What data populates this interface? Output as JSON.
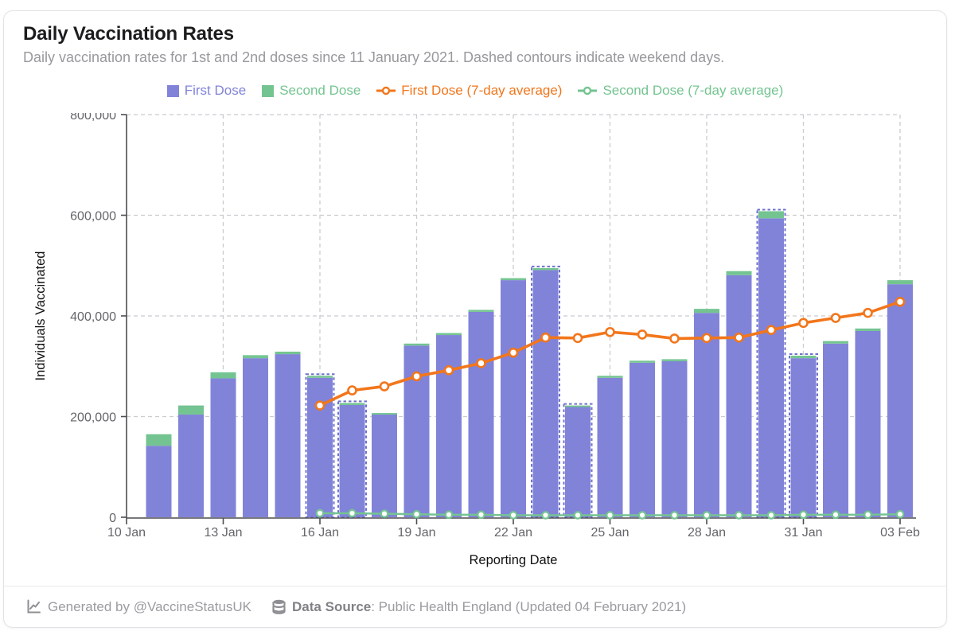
{
  "card": {
    "title": "Daily Vaccination Rates",
    "subtitle": "Daily vaccination rates for 1st and 2nd doses since 11 January 2021. Dashed contours indicate weekend days."
  },
  "colors": {
    "first_dose": "#8183d8",
    "second_dose": "#74c491",
    "first_dose_avg": "#f2761b",
    "second_dose_avg": "#74c491",
    "weekend_outline": "#6e71cf",
    "grid": "#cbcbd0",
    "axis": "#4d4d52"
  },
  "chart_data": {
    "type": "bar",
    "stacked": true,
    "title": "Daily Vaccination Rates",
    "xlabel": "Reporting Date",
    "ylabel": "Individuals Vaccinated",
    "ylim": [
      0,
      800000
    ],
    "ytick_step": 200000,
    "grid": "dashed",
    "legend_position": "top-center",
    "categories": [
      "11 Jan",
      "12 Jan",
      "13 Jan",
      "14 Jan",
      "15 Jan",
      "16 Jan",
      "17 Jan",
      "18 Jan",
      "19 Jan",
      "20 Jan",
      "21 Jan",
      "22 Jan",
      "23 Jan",
      "24 Jan",
      "25 Jan",
      "26 Jan",
      "27 Jan",
      "28 Jan",
      "29 Jan",
      "30 Jan",
      "31 Jan",
      "01 Feb",
      "02 Feb",
      "03 Feb"
    ],
    "x_tick_labels": [
      "10 Jan",
      "13 Jan",
      "16 Jan",
      "19 Jan",
      "22 Jan",
      "25 Jan",
      "28 Jan",
      "31 Jan",
      "03 Feb"
    ],
    "x_tick_every_days": 3,
    "weekend_days": [
      "16 Jan",
      "17 Jan",
      "23 Jan",
      "24 Jan",
      "30 Jan",
      "31 Jan"
    ],
    "series": [
      {
        "name": "First Dose",
        "type": "bar",
        "color": "#8183d8",
        "values": [
          142000,
          204000,
          276000,
          316000,
          324000,
          277000,
          223000,
          204000,
          341000,
          362000,
          408000,
          471000,
          491000,
          219000,
          277000,
          307000,
          310000,
          406000,
          481000,
          594000,
          316000,
          345000,
          370000,
          463000
        ]
      },
      {
        "name": "Second Dose",
        "type": "bar",
        "color": "#74c491",
        "values": [
          23000,
          18000,
          12000,
          6000,
          5000,
          4000,
          4000,
          3000,
          4000,
          4000,
          4000,
          4000,
          4000,
          3000,
          4000,
          4000,
          4000,
          8000,
          8000,
          14000,
          5000,
          5000,
          5000,
          8000
        ]
      },
      {
        "name": "First Dose (7-day average)",
        "type": "line",
        "color": "#f2761b",
        "start_category": "16 Jan",
        "values": [
          222000,
          252000,
          260000,
          280000,
          292000,
          306000,
          327000,
          357000,
          356000,
          368000,
          363000,
          355000,
          356000,
          357000,
          372000,
          386000,
          396000,
          406000,
          428000
        ]
      },
      {
        "name": "Second Dose (7-day average)",
        "type": "line",
        "color": "#74c491",
        "start_category": "16 Jan",
        "values": [
          8000,
          8000,
          7000,
          6000,
          5000,
          5000,
          4000,
          4000,
          4000,
          4000,
          4000,
          4000,
          4000,
          4000,
          4000,
          5000,
          5000,
          5000,
          6000
        ]
      }
    ]
  },
  "footer": {
    "generated_by": "Generated by @VaccineStatusUK",
    "data_source_label": "Data Source",
    "data_source_value": ": Public Health England (Updated 04 February 2021)",
    "icons": {
      "generated_by": "line-chart-icon",
      "data_source": "database-icon"
    }
  }
}
